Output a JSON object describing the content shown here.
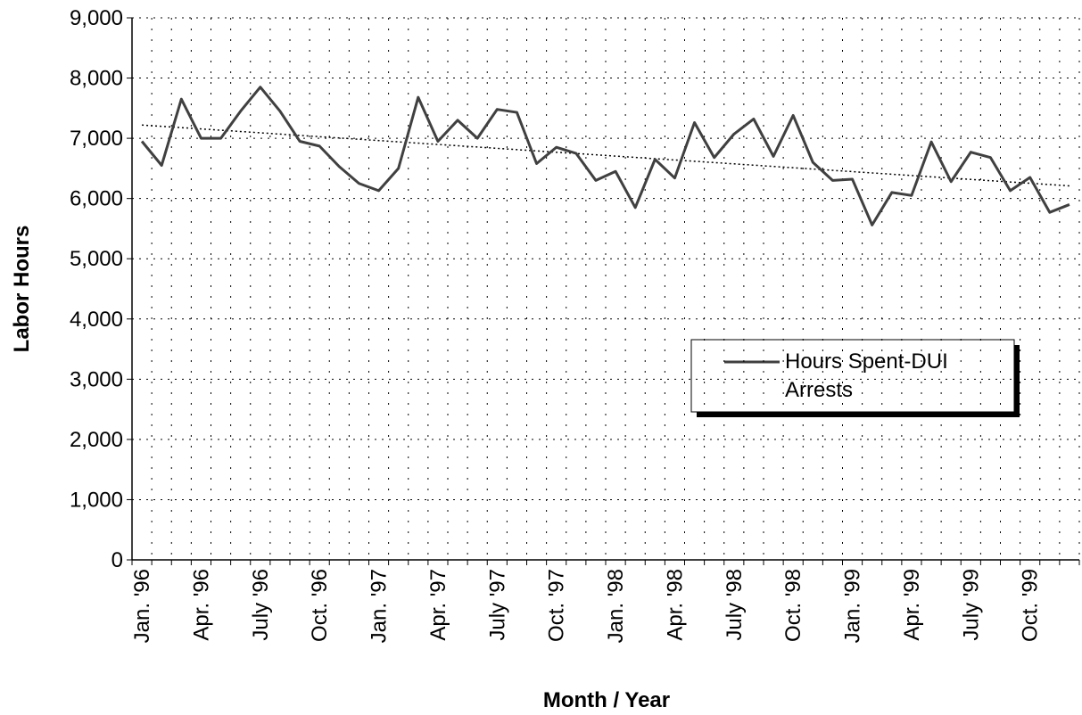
{
  "chart_data": {
    "type": "line",
    "y_label": "Labor Hours",
    "x_label": "Month / Year",
    "categories": [
      "Jan. '96",
      null,
      null,
      "Apr. '96",
      null,
      null,
      "July '96",
      null,
      null,
      "Oct. '96",
      null,
      null,
      "Jan. '97",
      null,
      null,
      "Apr. '97",
      null,
      null,
      "July '97",
      null,
      null,
      "Oct. '97",
      null,
      null,
      "Jan. '98",
      null,
      null,
      "Apr. '98",
      null,
      null,
      "July '98",
      null,
      null,
      "Oct. '98",
      null,
      null,
      "Jan. '99",
      null,
      null,
      "Apr. '99",
      null,
      null,
      "July '99",
      null,
      null,
      "Oct. '99",
      null,
      null
    ],
    "series": [
      {
        "name": "Hours Spent-DUI Arrests",
        "color": "#404040",
        "values": [
          6950,
          6550,
          7650,
          7000,
          7000,
          7450,
          7850,
          7450,
          6950,
          6870,
          6530,
          6250,
          6130,
          6500,
          7680,
          6950,
          7300,
          7000,
          7480,
          7430,
          6580,
          6850,
          6750,
          6300,
          6450,
          5850,
          6650,
          6340,
          7260,
          6680,
          7070,
          7320,
          6700,
          7380,
          6600,
          6300,
          6320,
          5560,
          6100,
          6050,
          6940,
          6280,
          6770,
          6680,
          6130,
          6350,
          5770,
          5900
        ]
      }
    ],
    "trend": [
      7220,
      6210
    ],
    "ylim": [
      0,
      9000
    ],
    "yticks": [
      0,
      {
        "value": 1000,
        "label": "1,000"
      },
      {
        "value": 2000,
        "label": "2,000"
      },
      {
        "value": 3000,
        "label": "3,000"
      },
      {
        "value": 4000,
        "label": "4,000"
      },
      {
        "value": 5000,
        "label": "5,000"
      },
      {
        "value": 6000,
        "label": "6,000"
      },
      {
        "value": 7000,
        "label": "7,000"
      },
      {
        "value": 8000,
        "label": "8,000"
      },
      {
        "value": 9000,
        "label": "9,000"
      }
    ],
    "grid": true
  }
}
